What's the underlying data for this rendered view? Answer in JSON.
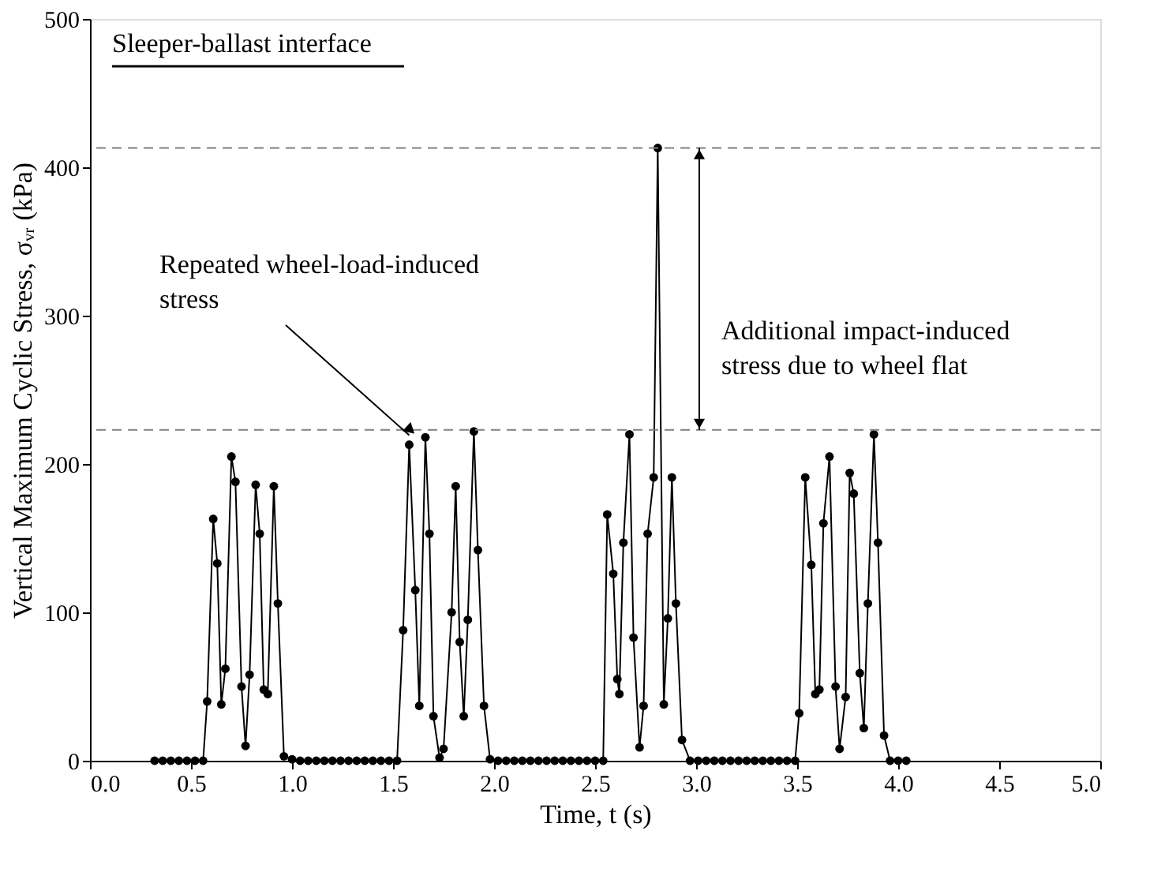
{
  "chart_data": {
    "type": "line",
    "xlabel": "Time, t (s)",
    "ylabel": "Vertical Maximum Cyclic Stress, σᵥᵣ (kPa)",
    "x": [
      0.32,
      0.36,
      0.4,
      0.44,
      0.48,
      0.52,
      0.56,
      0.58,
      0.61,
      0.63,
      0.65,
      0.67,
      0.7,
      0.72,
      0.75,
      0.77,
      0.79,
      0.82,
      0.84,
      0.86,
      0.88,
      0.91,
      0.93,
      0.96,
      1.0,
      1.04,
      1.08,
      1.12,
      1.16,
      1.2,
      1.24,
      1.28,
      1.32,
      1.36,
      1.4,
      1.44,
      1.48,
      1.52,
      1.55,
      1.58,
      1.61,
      1.63,
      1.66,
      1.68,
      1.7,
      1.73,
      1.75,
      1.79,
      1.81,
      1.83,
      1.85,
      1.87,
      1.9,
      1.92,
      1.95,
      1.98,
      2.02,
      2.06,
      2.1,
      2.14,
      2.18,
      2.22,
      2.26,
      2.3,
      2.34,
      2.38,
      2.42,
      2.46,
      2.5,
      2.54,
      2.56,
      2.59,
      2.61,
      2.62,
      2.64,
      2.67,
      2.69,
      2.72,
      2.74,
      2.76,
      2.79,
      2.81,
      2.84,
      2.86,
      2.88,
      2.9,
      2.93,
      2.97,
      3.01,
      3.05,
      3.09,
      3.13,
      3.17,
      3.21,
      3.25,
      3.29,
      3.33,
      3.37,
      3.41,
      3.45,
      3.49,
      3.51,
      3.54,
      3.57,
      3.59,
      3.61,
      3.63,
      3.66,
      3.69,
      3.71,
      3.74,
      3.76,
      3.78,
      3.81,
      3.83,
      3.85,
      3.88,
      3.9,
      3.93,
      3.96,
      4.0,
      4.04
    ],
    "series": [
      {
        "color": "#000000",
        "values": [
          0,
          0,
          0,
          0,
          0,
          0,
          0,
          40,
          163,
          133,
          38,
          62,
          205,
          188,
          50,
          10,
          58,
          186,
          153,
          48,
          45,
          185,
          106,
          3,
          1,
          0,
          0,
          0,
          0,
          0,
          0,
          0,
          0,
          0,
          0,
          0,
          0,
          0,
          88,
          213,
          115,
          37,
          218,
          153,
          30,
          2,
          8,
          100,
          185,
          80,
          30,
          95,
          222,
          142,
          37,
          1,
          0,
          0,
          0,
          0,
          0,
          0,
          0,
          0,
          0,
          0,
          0,
          0,
          0,
          0,
          166,
          126,
          55,
          45,
          147,
          220,
          83,
          9,
          37,
          153,
          191,
          413,
          38,
          96,
          191,
          106,
          14,
          0,
          0,
          0,
          0,
          0,
          0,
          0,
          0,
          0,
          0,
          0,
          0,
          0,
          0,
          32,
          191,
          132,
          45,
          48,
          160,
          205,
          50,
          8,
          43,
          194,
          180,
          59,
          22,
          106,
          220,
          147,
          17,
          0,
          0,
          0
        ]
      }
    ],
    "xlim": [
      0.0,
      5.0
    ],
    "xticks": [
      {
        "value": 0,
        "label": "0.0"
      },
      {
        "value": 0.5,
        "label": "0.5"
      },
      {
        "value": 1,
        "label": "1.0"
      },
      {
        "value": 1.5,
        "label": "1.5"
      },
      {
        "value": 2,
        "label": "2.0"
      },
      {
        "value": 2.5,
        "label": "2.5"
      },
      {
        "value": 3,
        "label": "3.0"
      },
      {
        "value": 3.5,
        "label": "3.5"
      },
      {
        "value": 4,
        "label": "4.0"
      },
      {
        "value": 4.5,
        "label": "4.5"
      },
      {
        "value": 5,
        "label": "5.0"
      }
    ],
    "ylim": [
      0,
      500
    ],
    "yticks": [
      0,
      100,
      200,
      300,
      400,
      500
    ],
    "ref_lines": [
      {
        "axis": "y",
        "value": 223,
        "color": "#808080",
        "line_style": "dashed"
      },
      {
        "axis": "y",
        "value": 413,
        "color": "#808080",
        "line_style": "dashed"
      }
    ],
    "annotations": [
      "Sleeper-ballast interface",
      {
        "text": "Repeated wheel-load-induced\nstress",
        "x": 1.58,
        "y": 213
      },
      "Additional impact-induced\nstress due to wheel flat"
    ],
    "marker": "circle",
    "line_style": "solid",
    "grid": false
  }
}
